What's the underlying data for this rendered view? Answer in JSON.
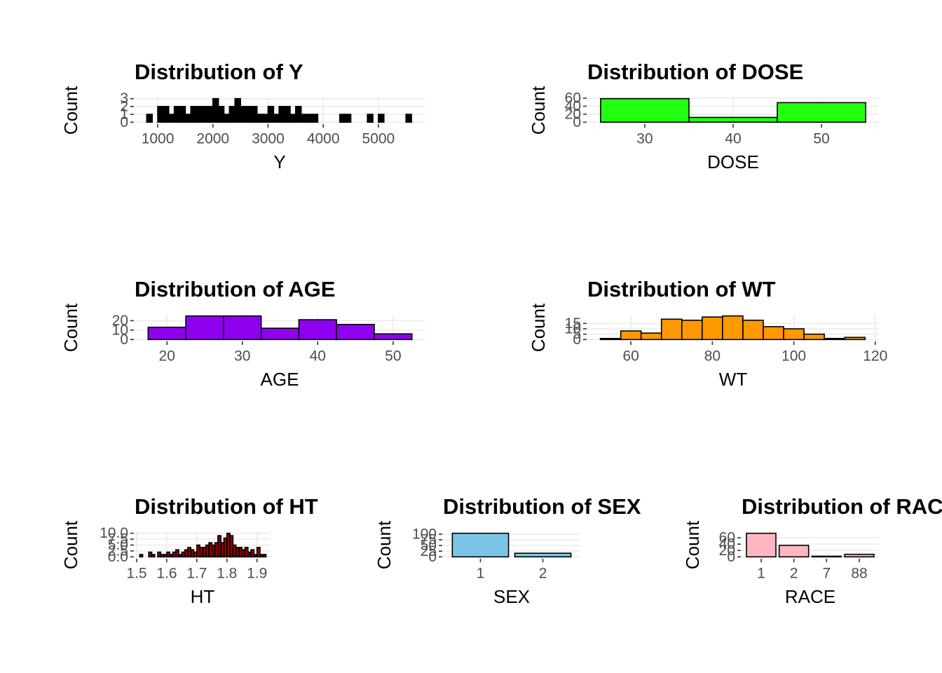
{
  "chart_data": [
    {
      "type": "histogram",
      "title": "Distribution of Y",
      "xlabel": "Y",
      "ylabel": "Count",
      "color": "#000000",
      "grid": true,
      "bins": [
        800,
        900,
        1000,
        1100,
        1200,
        1300,
        1400,
        1500,
        1600,
        1700,
        1800,
        1900,
        2000,
        2100,
        2200,
        2300,
        2400,
        2500,
        2600,
        2700,
        2800,
        2900,
        3000,
        3100,
        3200,
        3300,
        3400,
        3500,
        3600,
        3700,
        3800,
        3900,
        4000,
        4100,
        4200,
        4300,
        4400,
        4500,
        4600,
        4700,
        4800,
        4900,
        5000,
        5100,
        5200,
        5300,
        5400,
        5500,
        5600
      ],
      "values": [
        1,
        0,
        2,
        2,
        1,
        2,
        2,
        1,
        2,
        2,
        2,
        2,
        3,
        2,
        1,
        2,
        3,
        2,
        2,
        2,
        1,
        1,
        2,
        1,
        2,
        2,
        1,
        2,
        1,
        1,
        1,
        0,
        0,
        0,
        0,
        1,
        1,
        0,
        0,
        0,
        1,
        0,
        1,
        0,
        0,
        0,
        0,
        1
      ],
      "xlim": [
        580,
        5840
      ],
      "ylim": [
        -0.15,
        3.15
      ],
      "xticks": [
        1000,
        2000,
        3000,
        4000,
        5000
      ],
      "yticks": [
        0,
        1,
        2,
        3
      ]
    },
    {
      "type": "histogram",
      "title": "Distribution of DOSE",
      "xlabel": "DOSE",
      "ylabel": "Count",
      "color": "#22FF11",
      "grid": true,
      "bins": [
        25,
        35,
        45,
        55
      ],
      "values": [
        59,
        12,
        49
      ],
      "xlim": [
        23.5,
        56.5
      ],
      "ylim": [
        -2.95,
        61.95
      ],
      "xticks": [
        30,
        40,
        50
      ],
      "yticks": [
        0,
        20,
        40,
        60
      ]
    },
    {
      "type": "histogram",
      "title": "Distribution of AGE",
      "xlabel": "AGE",
      "ylabel": "Count",
      "color": "#9000F0",
      "grid": true,
      "bins": [
        17.5,
        22.5,
        27.5,
        32.5,
        37.5,
        42.5,
        47.5,
        52.5
      ],
      "values": [
        13,
        25,
        25,
        12,
        21,
        16,
        6
      ],
      "xlim": [
        15.7,
        54.2
      ],
      "ylim": [
        -1.25,
        26.25
      ],
      "xticks": [
        20,
        30,
        40,
        50
      ],
      "yticks": [
        0,
        10,
        20
      ]
    },
    {
      "type": "histogram",
      "title": "Distribution of WT",
      "xlabel": "WT",
      "ylabel": "Count",
      "color": "#FF9900",
      "grid": true,
      "bins": [
        52.5,
        57.5,
        62.5,
        67.5,
        72.5,
        77.5,
        82.5,
        87.5,
        92.5,
        97.5,
        102.5,
        107.5,
        112.5,
        117.5
      ],
      "values": [
        1,
        8,
        6,
        19,
        18,
        21,
        22,
        18,
        12,
        10,
        5,
        1,
        2
      ],
      "xlim": [
        49.3,
        120.9
      ],
      "ylim": [
        -1.1,
        23.1
      ],
      "xticks": [
        60,
        80,
        100,
        120
      ],
      "yticks": [
        0,
        5,
        10,
        15
      ]
    },
    {
      "type": "histogram",
      "title": "Distribution of HT",
      "xlabel": "HT",
      "ylabel": "Count",
      "color": "#8B0000",
      "grid": true,
      "bins": [
        1.51,
        1.52,
        1.53,
        1.54,
        1.55,
        1.56,
        1.57,
        1.58,
        1.59,
        1.6,
        1.61,
        1.62,
        1.63,
        1.64,
        1.65,
        1.66,
        1.67,
        1.68,
        1.69,
        1.7,
        1.71,
        1.72,
        1.73,
        1.74,
        1.75,
        1.76,
        1.77,
        1.78,
        1.79,
        1.8,
        1.81,
        1.82,
        1.83,
        1.84,
        1.85,
        1.86,
        1.87,
        1.88,
        1.89,
        1.9,
        1.91,
        1.92,
        1.93
      ],
      "values": [
        1,
        0,
        0,
        2,
        1,
        0,
        2,
        1,
        1,
        2,
        1,
        2,
        3,
        1,
        2,
        3,
        4,
        3,
        2,
        5,
        4,
        4,
        5,
        6,
        5,
        6,
        9,
        6,
        8,
        10,
        9,
        5,
        4,
        4,
        3,
        4,
        2,
        3,
        1,
        4,
        1,
        1
      ],
      "xlim": [
        1.493,
        1.945
      ],
      "ylim": [
        -0.5,
        10.5
      ],
      "xticks": [
        1.5,
        1.6,
        1.7,
        1.8,
        1.9
      ],
      "yticks": [
        {
          "value": 0,
          "label": "0.0"
        },
        {
          "value": 2.5,
          "label": "2.5"
        },
        {
          "value": 5,
          "label": "5.0"
        },
        {
          "value": 7.5,
          "label": "7.5"
        },
        {
          "value": 10,
          "label": "10.0"
        }
      ]
    },
    {
      "type": "bar",
      "title": "Distribution of SEX",
      "xlabel": "SEX",
      "ylabel": "Count",
      "color": "#7BC4E6",
      "grid": true,
      "categories": [
        "1",
        "2"
      ],
      "values": [
        104,
        16
      ],
      "ylim": [
        -5.2,
        109.2
      ],
      "yticks": [
        0,
        25,
        50,
        75,
        100
      ]
    },
    {
      "type": "bar",
      "title": "Distribution of RACE",
      "xlabel": "RACE",
      "ylabel": "Count",
      "color": "#FFB6C1",
      "grid": true,
      "categories": [
        "1",
        "2",
        "7",
        "88"
      ],
      "values": [
        74,
        36,
        2,
        8
      ],
      "ylim": [
        -3.7,
        77.7
      ],
      "yticks": [
        0,
        20,
        40,
        60
      ]
    }
  ]
}
